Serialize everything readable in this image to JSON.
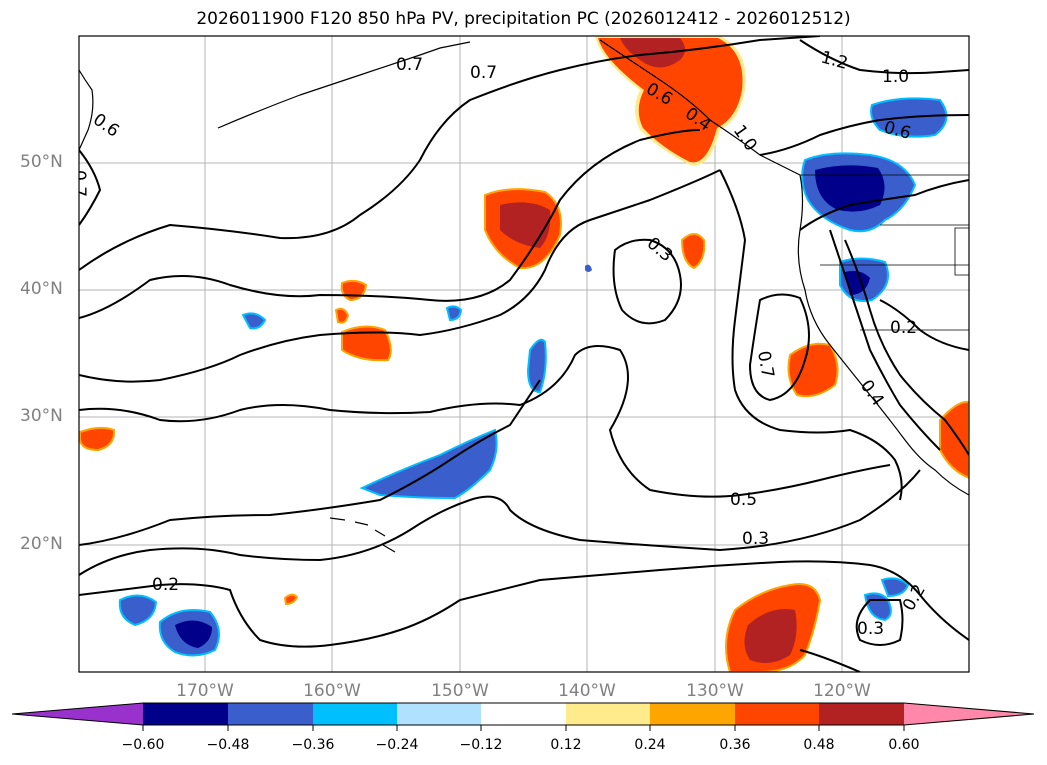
{
  "title": "2026011900 F120 850 hPa PV, precipitation PC (2026012412 - 2026012512)",
  "lat_labels": [
    "50°N",
    "40°N",
    "30°N",
    "20°N"
  ],
  "lon_labels": [
    "170°W",
    "160°W",
    "150°W",
    "140°W",
    "130°W",
    "120°W"
  ],
  "contour_labels": [
    "0.7",
    "0.6",
    "0.7",
    "0.7",
    "1.2",
    "1.0",
    "0.6",
    "0.6",
    "0.4",
    "1.0",
    "0.3",
    "0.7",
    "0.2",
    "0.4",
    "0.5",
    "0.3",
    "0.2",
    "0.3",
    "0.2"
  ],
  "colorbar": {
    "ticks": [
      "−0.60",
      "−0.48",
      "−0.36",
      "−0.24",
      "−0.12",
      "0.12",
      "0.24",
      "0.36",
      "0.48",
      "0.60"
    ],
    "colors": [
      "#9932cc",
      "#00008b",
      "#3a5fcd",
      "#00bfff",
      "#b0e2ff",
      "#ffffff",
      "#ffeb8c",
      "#ffa500",
      "#ff4500",
      "#b22222",
      "#ff88aa"
    ]
  }
}
